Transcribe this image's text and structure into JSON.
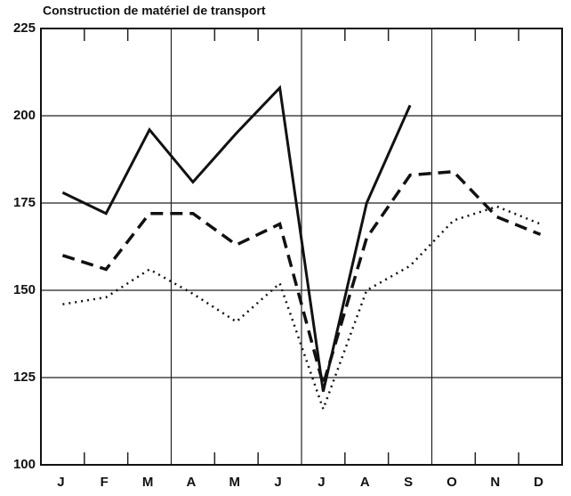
{
  "chart_data": {
    "type": "line",
    "title": "Construction de matériel de transport",
    "categories": [
      "J",
      "F",
      "M",
      "A",
      "M",
      "J",
      "J",
      "A",
      "S",
      "O",
      "N",
      "D"
    ],
    "series": [
      {
        "style": "solid",
        "color": "#111111",
        "values": [
          178,
          172,
          196,
          181,
          195,
          208,
          121,
          175,
          203,
          null,
          null,
          null
        ]
      },
      {
        "style": "dashed",
        "color": "#111111",
        "values": [
          160,
          156,
          172,
          172,
          163,
          169,
          123,
          165,
          183,
          184,
          171,
          166
        ]
      },
      {
        "style": "dotted",
        "color": "#111111",
        "values": [
          146,
          148,
          156,
          149,
          141,
          152,
          116,
          150,
          157,
          170,
          174,
          169
        ]
      }
    ],
    "ylim": [
      100,
      225
    ],
    "yticks": [
      100,
      125,
      150,
      175,
      200,
      225
    ],
    "grid": true
  }
}
